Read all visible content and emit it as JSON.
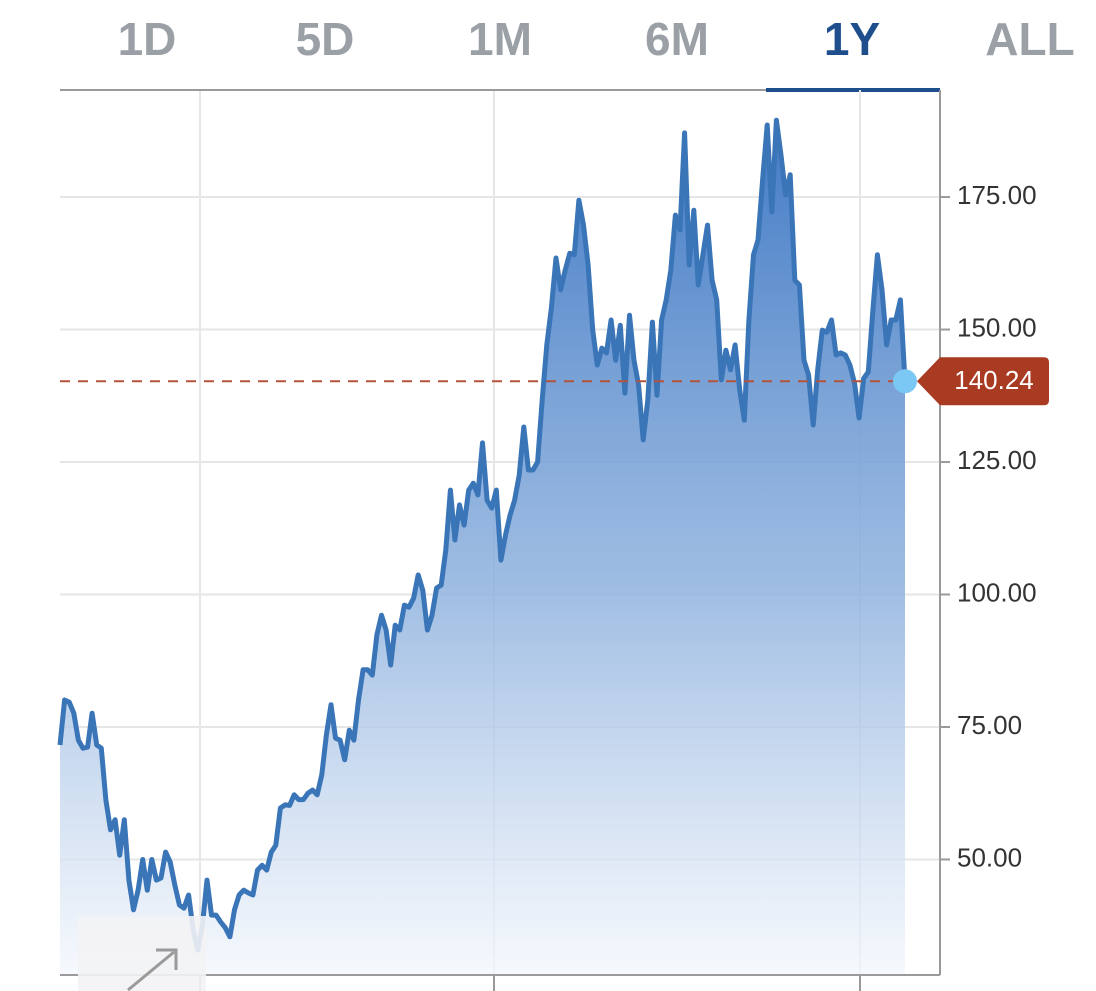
{
  "chart_data": {
    "type": "area",
    "tabs": [
      "1D",
      "5D",
      "1M",
      "6M",
      "1Y",
      "ALL"
    ],
    "active_tab": 4,
    "color": "#3a75b8",
    "grid": true,
    "ylim": [
      28.2,
      195.2
    ],
    "yticks": [
      {
        "value": 50,
        "label": "50.00"
      },
      {
        "value": 75,
        "label": "75.00"
      },
      {
        "value": 100,
        "label": "100.00"
      },
      {
        "value": 125,
        "label": "125.00"
      },
      {
        "value": 150,
        "label": "150.00"
      },
      {
        "value": 175,
        "label": "175.00"
      }
    ],
    "last_price": 140.24,
    "values": [
      71.6,
      80.1,
      79.7,
      77.6,
      72.5,
      71.0,
      71.2,
      77.6,
      71.6,
      71.0,
      61.2,
      55.6,
      57.5,
      50.8,
      57.5,
      46.1,
      40.5,
      44.2,
      50.0,
      44.2,
      50.0,
      46.1,
      46.5,
      51.4,
      49.5,
      45.2,
      41.4,
      40.8,
      43.3,
      36.7,
      32.9,
      37.6,
      46.1,
      39.5,
      39.5,
      38.2,
      37.1,
      35.4,
      40.5,
      43.3,
      44.2,
      43.7,
      43.3,
      48.0,
      48.9,
      48.0,
      51.4,
      52.7,
      59.7,
      60.3,
      60.2,
      62.2,
      61.3,
      61.3,
      62.5,
      63.1,
      62.2,
      66.0,
      73.5,
      79.2,
      72.9,
      72.5,
      68.8,
      74.4,
      72.5,
      80.1,
      85.8,
      85.8,
      84.8,
      92.4,
      96.1,
      93.3,
      86.7,
      94.2,
      93.3,
      98.0,
      97.6,
      99.3,
      103.7,
      100.8,
      93.3,
      96.1,
      101.2,
      101.8,
      108.4,
      119.7,
      110.3,
      116.9,
      113.1,
      119.7,
      121.0,
      118.8,
      128.6,
      117.8,
      116.3,
      119.7,
      106.5,
      111.2,
      115.0,
      117.8,
      122.5,
      131.6,
      123.5,
      123.5,
      125.0,
      136.7,
      147.1,
      154.1,
      163.5,
      157.5,
      161.2,
      164.4,
      164.1,
      174.4,
      169.7,
      162.2,
      149.9,
      143.3,
      146.5,
      145.6,
      151.8,
      144.2,
      150.8,
      138.0,
      152.7,
      144.2,
      139.5,
      129.2,
      136.7,
      151.4,
      137.6,
      151.8,
      155.6,
      161.2,
      171.6,
      168.8,
      187.1,
      162.2,
      172.5,
      158.4,
      164.1,
      169.7,
      159.3,
      155.6,
      140.5,
      146.1,
      142.4,
      147.1,
      138.6,
      132.9,
      151.8,
      164.1,
      166.9,
      178.2,
      188.6,
      172.2,
      189.5,
      182.9,
      175.4,
      179.2,
      159.3,
      158.4,
      144.2,
      141.4,
      132.0,
      142.4,
      149.9,
      149.5,
      151.8,
      145.2,
      145.6,
      145.2,
      143.3,
      139.9,
      133.3,
      140.8,
      142.0,
      153.7,
      164.1,
      157.5,
      147.1,
      151.8,
      151.8,
      155.6,
      140.24
    ]
  }
}
